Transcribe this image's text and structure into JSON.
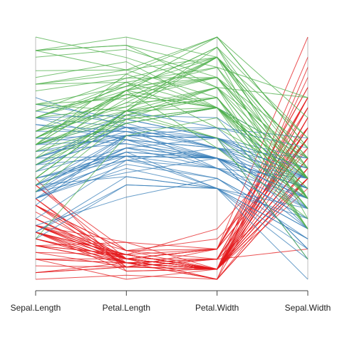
{
  "chart_data": {
    "type": "parallel-coordinates",
    "axes": [
      "Sepal.Length",
      "Petal.Length",
      "Petal.Width",
      "Sepal.Width"
    ],
    "ranges": {
      "Sepal.Length": [
        4.3,
        7.9
      ],
      "Petal.Length": [
        1.0,
        6.9
      ],
      "Petal.Width": [
        0.1,
        2.5
      ],
      "Sepal.Width": [
        2.0,
        4.4
      ]
    },
    "grid": false,
    "legend": "none",
    "series": [
      {
        "color": "#e41a1c",
        "observations": [
          [
            5.1,
            1.4,
            0.2,
            3.5
          ],
          [
            4.9,
            1.4,
            0.2,
            3.0
          ],
          [
            4.7,
            1.3,
            0.2,
            3.2
          ],
          [
            4.6,
            1.5,
            0.2,
            3.1
          ],
          [
            5.0,
            1.4,
            0.2,
            3.6
          ],
          [
            5.4,
            1.7,
            0.4,
            3.9
          ],
          [
            4.6,
            1.4,
            0.3,
            3.4
          ],
          [
            5.0,
            1.5,
            0.2,
            3.4
          ],
          [
            4.4,
            1.4,
            0.2,
            2.9
          ],
          [
            4.9,
            1.5,
            0.1,
            3.1
          ],
          [
            5.4,
            1.5,
            0.2,
            3.7
          ],
          [
            4.8,
            1.6,
            0.2,
            3.4
          ],
          [
            4.8,
            1.4,
            0.1,
            3.0
          ],
          [
            4.3,
            1.1,
            0.1,
            3.0
          ],
          [
            5.8,
            1.2,
            0.2,
            4.0
          ],
          [
            5.7,
            1.5,
            0.4,
            4.4
          ],
          [
            5.4,
            1.3,
            0.4,
            3.9
          ],
          [
            5.1,
            1.4,
            0.3,
            3.5
          ],
          [
            5.7,
            1.7,
            0.3,
            3.8
          ],
          [
            5.1,
            1.5,
            0.3,
            3.8
          ],
          [
            5.4,
            1.7,
            0.2,
            3.4
          ],
          [
            5.1,
            1.5,
            0.4,
            3.7
          ],
          [
            4.6,
            1.0,
            0.2,
            3.6
          ],
          [
            5.1,
            1.7,
            0.5,
            3.3
          ],
          [
            4.8,
            1.9,
            0.2,
            3.4
          ],
          [
            5.0,
            1.6,
            0.2,
            3.0
          ],
          [
            5.0,
            1.6,
            0.4,
            3.4
          ],
          [
            5.2,
            1.5,
            0.2,
            3.5
          ],
          [
            5.2,
            1.4,
            0.2,
            3.4
          ],
          [
            4.7,
            1.6,
            0.2,
            3.2
          ],
          [
            4.8,
            1.6,
            0.2,
            3.1
          ],
          [
            5.4,
            1.5,
            0.4,
            3.4
          ],
          [
            5.2,
            1.5,
            0.1,
            4.1
          ],
          [
            5.5,
            1.4,
            0.2,
            4.2
          ],
          [
            4.9,
            1.5,
            0.2,
            3.1
          ],
          [
            5.0,
            1.2,
            0.2,
            3.2
          ],
          [
            5.5,
            1.3,
            0.2,
            3.5
          ],
          [
            4.9,
            1.4,
            0.1,
            3.6
          ],
          [
            4.4,
            1.3,
            0.2,
            3.0
          ],
          [
            5.1,
            1.5,
            0.2,
            3.4
          ],
          [
            5.0,
            1.3,
            0.3,
            3.5
          ],
          [
            4.5,
            1.3,
            0.3,
            2.3
          ],
          [
            4.4,
            1.3,
            0.2,
            3.2
          ],
          [
            5.0,
            1.6,
            0.6,
            3.5
          ],
          [
            5.1,
            1.9,
            0.4,
            3.8
          ],
          [
            4.8,
            1.4,
            0.3,
            3.0
          ],
          [
            5.1,
            1.6,
            0.2,
            3.8
          ],
          [
            4.6,
            1.4,
            0.2,
            3.2
          ],
          [
            5.3,
            1.5,
            0.2,
            3.7
          ],
          [
            5.0,
            1.4,
            0.2,
            3.3
          ]
        ]
      },
      {
        "color": "#377eb8",
        "observations": [
          [
            7.0,
            4.7,
            1.4,
            3.2
          ],
          [
            6.4,
            4.5,
            1.5,
            3.2
          ],
          [
            6.9,
            4.9,
            1.5,
            3.1
          ],
          [
            5.5,
            4.0,
            1.3,
            2.3
          ],
          [
            6.5,
            4.6,
            1.5,
            2.8
          ],
          [
            5.7,
            4.5,
            1.3,
            2.8
          ],
          [
            6.3,
            4.7,
            1.6,
            3.3
          ],
          [
            4.9,
            3.3,
            1.0,
            2.4
          ],
          [
            6.6,
            4.6,
            1.3,
            2.9
          ],
          [
            5.2,
            3.9,
            1.4,
            2.7
          ],
          [
            5.0,
            3.5,
            1.0,
            2.0
          ],
          [
            5.9,
            4.2,
            1.5,
            3.0
          ],
          [
            6.0,
            4.0,
            1.0,
            2.2
          ],
          [
            6.1,
            4.7,
            1.4,
            2.9
          ],
          [
            5.6,
            3.6,
            1.3,
            2.9
          ],
          [
            6.7,
            4.4,
            1.4,
            3.1
          ],
          [
            5.6,
            4.5,
            1.5,
            3.0
          ],
          [
            5.8,
            4.1,
            1.0,
            2.7
          ],
          [
            6.2,
            4.5,
            1.5,
            2.2
          ],
          [
            5.6,
            3.9,
            1.1,
            2.5
          ],
          [
            5.9,
            4.8,
            1.8,
            3.2
          ],
          [
            6.1,
            4.0,
            1.3,
            2.8
          ],
          [
            6.3,
            4.9,
            1.5,
            2.5
          ],
          [
            6.1,
            4.7,
            1.2,
            2.8
          ],
          [
            6.4,
            4.3,
            1.3,
            2.9
          ],
          [
            6.6,
            4.4,
            1.4,
            3.0
          ],
          [
            6.8,
            4.8,
            1.4,
            2.8
          ],
          [
            6.7,
            5.0,
            1.7,
            3.0
          ],
          [
            6.0,
            4.5,
            1.5,
            2.9
          ],
          [
            5.7,
            3.5,
            1.0,
            2.6
          ],
          [
            5.5,
            3.8,
            1.1,
            2.4
          ],
          [
            5.5,
            3.7,
            1.0,
            2.4
          ],
          [
            5.8,
            3.9,
            1.2,
            2.7
          ],
          [
            6.0,
            5.1,
            1.6,
            2.7
          ],
          [
            5.4,
            4.5,
            1.5,
            3.0
          ],
          [
            6.0,
            4.5,
            1.6,
            3.4
          ],
          [
            6.7,
            4.7,
            1.5,
            3.1
          ],
          [
            6.3,
            4.4,
            1.3,
            2.3
          ],
          [
            5.6,
            4.1,
            1.3,
            3.0
          ],
          [
            5.5,
            4.0,
            1.3,
            2.5
          ],
          [
            5.5,
            4.4,
            1.2,
            2.6
          ],
          [
            6.1,
            4.6,
            1.4,
            3.0
          ],
          [
            5.8,
            4.0,
            1.2,
            2.6
          ],
          [
            5.0,
            3.3,
            1.0,
            2.3
          ],
          [
            5.6,
            4.2,
            1.3,
            2.7
          ],
          [
            5.7,
            4.2,
            1.2,
            3.0
          ],
          [
            5.7,
            4.2,
            1.3,
            2.9
          ],
          [
            6.2,
            4.3,
            1.3,
            2.9
          ],
          [
            5.1,
            3.0,
            1.1,
            2.5
          ],
          [
            5.7,
            4.1,
            1.3,
            2.8
          ]
        ]
      },
      {
        "color": "#4daf4a",
        "observations": [
          [
            6.3,
            6.0,
            2.5,
            3.3
          ],
          [
            5.8,
            5.1,
            1.9,
            2.7
          ],
          [
            7.1,
            5.9,
            2.1,
            3.0
          ],
          [
            6.3,
            5.6,
            1.8,
            2.9
          ],
          [
            6.5,
            5.8,
            2.2,
            3.0
          ],
          [
            7.6,
            6.6,
            2.1,
            3.0
          ],
          [
            4.9,
            4.5,
            1.7,
            2.5
          ],
          [
            7.3,
            6.3,
            1.8,
            2.9
          ],
          [
            6.7,
            5.8,
            1.8,
            2.5
          ],
          [
            7.2,
            6.1,
            2.5,
            3.6
          ],
          [
            6.5,
            5.1,
            2.0,
            3.2
          ],
          [
            6.4,
            5.3,
            1.9,
            2.7
          ],
          [
            6.8,
            5.5,
            2.1,
            3.0
          ],
          [
            5.7,
            5.0,
            2.0,
            2.5
          ],
          [
            5.8,
            5.1,
            2.4,
            2.8
          ],
          [
            6.4,
            5.3,
            2.3,
            3.2
          ],
          [
            6.5,
            5.5,
            1.8,
            3.0
          ],
          [
            7.7,
            6.7,
            2.2,
            3.8
          ],
          [
            7.7,
            6.9,
            2.3,
            2.6
          ],
          [
            6.0,
            5.0,
            1.5,
            2.2
          ],
          [
            6.9,
            5.7,
            2.3,
            3.2
          ],
          [
            5.6,
            4.9,
            2.0,
            2.8
          ],
          [
            7.7,
            6.7,
            2.0,
            2.8
          ],
          [
            6.3,
            4.9,
            1.8,
            2.7
          ],
          [
            6.7,
            5.7,
            2.1,
            3.3
          ],
          [
            7.2,
            6.0,
            1.8,
            3.2
          ],
          [
            6.2,
            4.8,
            1.8,
            2.8
          ],
          [
            6.1,
            4.9,
            1.8,
            3.0
          ],
          [
            6.4,
            5.6,
            2.1,
            2.8
          ],
          [
            7.2,
            5.8,
            1.6,
            3.0
          ],
          [
            7.4,
            6.1,
            1.9,
            2.8
          ],
          [
            7.9,
            6.4,
            2.0,
            3.8
          ],
          [
            6.4,
            5.6,
            2.2,
            2.8
          ],
          [
            6.3,
            5.1,
            1.5,
            2.8
          ],
          [
            6.1,
            5.6,
            1.4,
            2.6
          ],
          [
            7.7,
            6.1,
            2.3,
            3.0
          ],
          [
            6.3,
            5.6,
            2.4,
            3.4
          ],
          [
            6.4,
            5.5,
            1.8,
            3.1
          ],
          [
            6.0,
            4.8,
            1.8,
            3.0
          ],
          [
            6.9,
            5.4,
            2.1,
            3.1
          ],
          [
            6.7,
            5.6,
            2.4,
            3.1
          ],
          [
            6.9,
            5.1,
            2.3,
            3.1
          ],
          [
            5.8,
            5.1,
            1.9,
            2.7
          ],
          [
            6.8,
            5.9,
            2.3,
            3.2
          ],
          [
            6.7,
            5.7,
            2.5,
            3.3
          ],
          [
            6.7,
            5.2,
            2.3,
            3.0
          ],
          [
            6.3,
            5.0,
            1.9,
            2.5
          ],
          [
            6.5,
            5.2,
            2.0,
            3.0
          ],
          [
            6.2,
            5.4,
            2.3,
            3.4
          ],
          [
            5.9,
            5.1,
            1.8,
            3.0
          ]
        ]
      }
    ]
  }
}
